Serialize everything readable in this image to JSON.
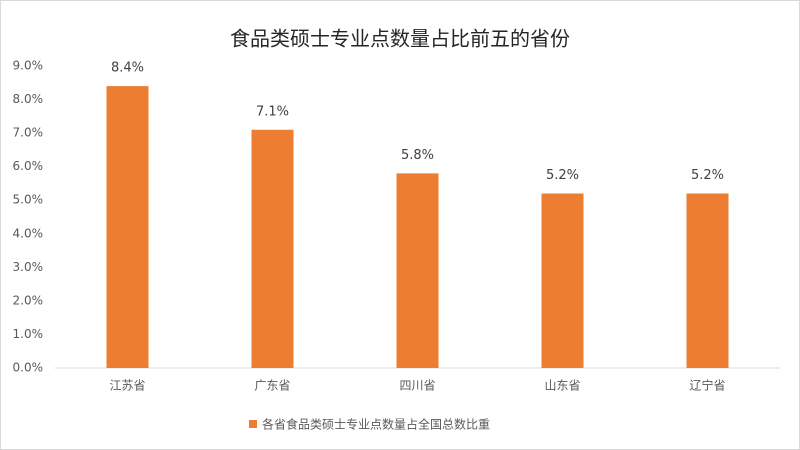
{
  "chart_data": {
    "type": "bar",
    "title": "食品类硕士专业点数量占比前五的省份",
    "categories": [
      "江苏省",
      "广东省",
      "四川省",
      "山东省",
      "辽宁省"
    ],
    "series": [
      {
        "name": "各省食品类硕士专业点数量占全国总数比重",
        "color": "#ed7d31",
        "values": [
          8.4,
          7.1,
          5.8,
          5.2,
          5.2
        ],
        "value_labels": [
          "8.4%",
          "7.1%",
          "5.8%",
          "5.2%",
          "5.2%"
        ]
      }
    ],
    "ylim": [
      0,
      9
    ],
    "yticks": [
      {
        "value": 0,
        "label": "0.0%"
      },
      {
        "value": 1,
        "label": "1.0%"
      },
      {
        "value": 2,
        "label": "2.0%"
      },
      {
        "value": 3,
        "label": "3.0%"
      },
      {
        "value": 4,
        "label": "4.0%"
      },
      {
        "value": 5,
        "label": "5.0%"
      },
      {
        "value": 6,
        "label": "6.0%"
      },
      {
        "value": 7,
        "label": "7.0%"
      },
      {
        "value": 8,
        "label": "8.0%"
      },
      {
        "value": 9,
        "label": "9.0%"
      }
    ],
    "grid": false,
    "legend": "bottom"
  }
}
